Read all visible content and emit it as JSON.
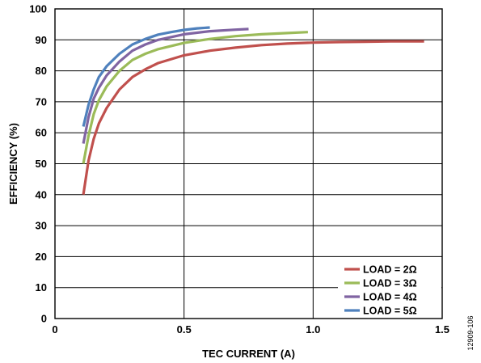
{
  "figure_id": "12909-106",
  "chart_data": {
    "type": "line",
    "title": "",
    "xlabel": "TEC CURRENT (A)",
    "ylabel": "EFFICIENCY (%)",
    "xlim": [
      0,
      1.5
    ],
    "ylim": [
      0,
      100
    ],
    "x_ticks": [
      0,
      0.5,
      1.0,
      1.5
    ],
    "x_tick_labels": [
      "0",
      "0.5",
      "1.0",
      "1.5"
    ],
    "y_ticks": [
      0,
      10,
      20,
      30,
      40,
      50,
      60,
      70,
      80,
      90,
      100
    ],
    "y_tick_labels": [
      "0",
      "10",
      "20",
      "30",
      "40",
      "50",
      "60",
      "70",
      "80",
      "90",
      "100"
    ],
    "grid": {
      "vertical_at": [
        0.5,
        1.0
      ],
      "horizontal_at": [
        10,
        20,
        30,
        40,
        50,
        60,
        70,
        80,
        90
      ]
    },
    "legend_position": "bottom-right",
    "series": [
      {
        "name": "LOAD = 2Ω",
        "color": "#c0504d",
        "x": [
          0.11,
          0.13,
          0.15,
          0.17,
          0.2,
          0.25,
          0.3,
          0.35,
          0.4,
          0.5,
          0.6,
          0.7,
          0.8,
          0.9,
          1.0,
          1.1,
          1.2,
          1.3,
          1.43
        ],
        "y": [
          40,
          51,
          58,
          63,
          68,
          74,
          78,
          80.5,
          82.5,
          85,
          86.5,
          87.5,
          88.3,
          88.8,
          89.1,
          89.3,
          89.4,
          89.5,
          89.5
        ]
      },
      {
        "name": "LOAD = 3Ω",
        "color": "#9bbb59",
        "x": [
          0.11,
          0.13,
          0.15,
          0.17,
          0.2,
          0.25,
          0.3,
          0.35,
          0.4,
          0.5,
          0.6,
          0.7,
          0.8,
          0.9,
          0.98
        ],
        "y": [
          50,
          59,
          66,
          70.5,
          75,
          80,
          83.5,
          85.5,
          87,
          89,
          90.3,
          91.2,
          91.8,
          92.2,
          92.5
        ]
      },
      {
        "name": "LOAD = 4Ω",
        "color": "#8064a2",
        "x": [
          0.11,
          0.13,
          0.15,
          0.17,
          0.2,
          0.25,
          0.3,
          0.35,
          0.4,
          0.5,
          0.6,
          0.7,
          0.75
        ],
        "y": [
          56.5,
          65,
          71,
          74.5,
          78.5,
          83,
          86.5,
          88.5,
          90,
          91.8,
          92.8,
          93.3,
          93.5
        ]
      },
      {
        "name": "LOAD = 5Ω",
        "color": "#4f81bd",
        "x": [
          0.11,
          0.13,
          0.15,
          0.17,
          0.2,
          0.25,
          0.3,
          0.35,
          0.4,
          0.45,
          0.5,
          0.55,
          0.6
        ],
        "y": [
          62,
          69,
          74,
          78,
          81.5,
          85.5,
          88.5,
          90.3,
          91.7,
          92.5,
          93.2,
          93.7,
          94
        ]
      }
    ]
  }
}
